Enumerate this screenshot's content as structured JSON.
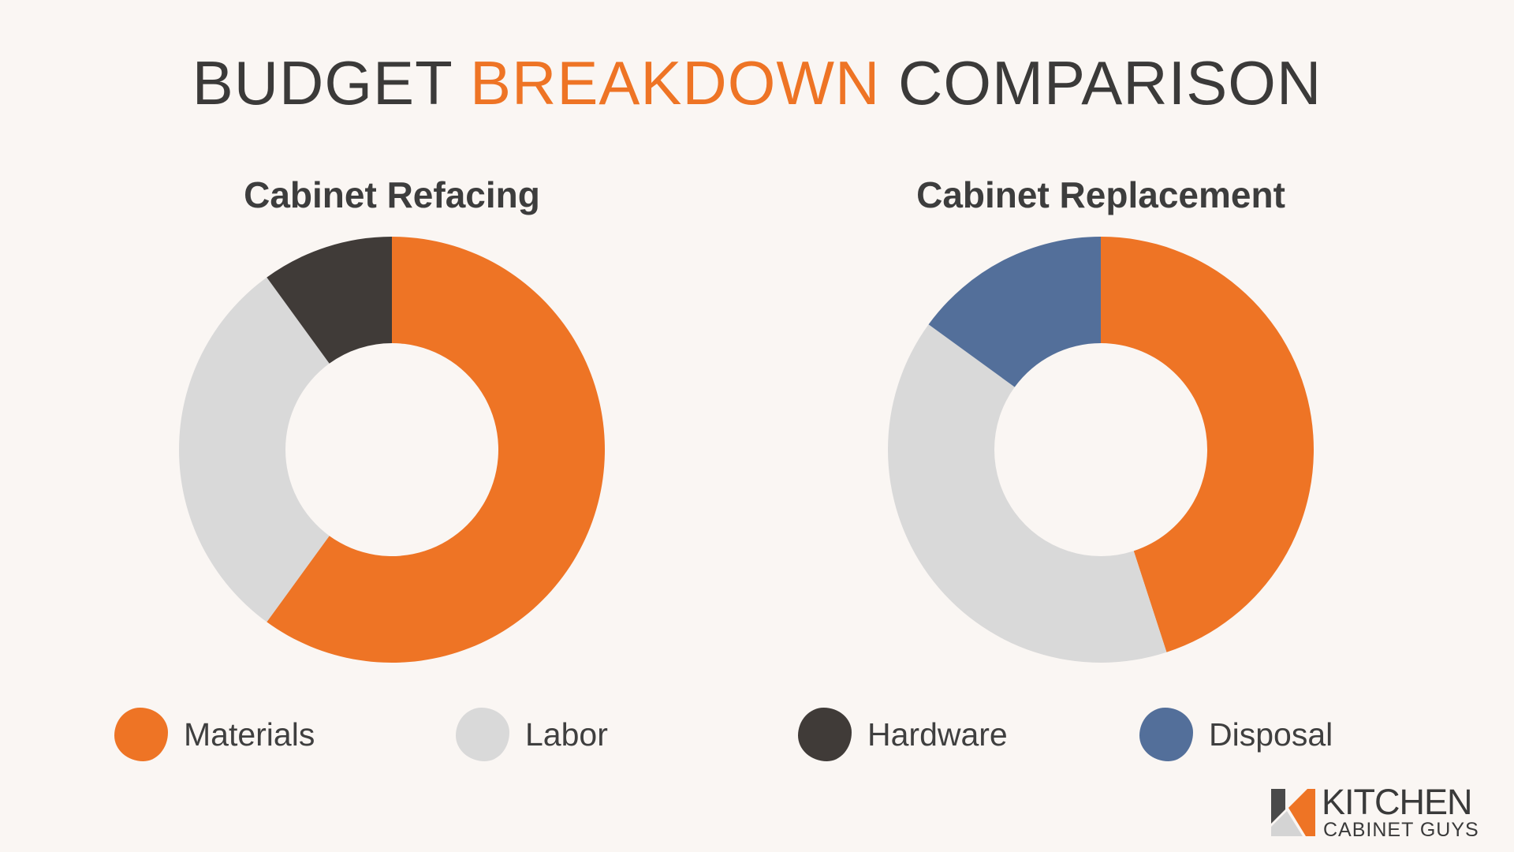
{
  "header": {
    "title_part1": "BUDGET",
    "title_part2": "BREAKDOWN",
    "title_part3": "COMPARISON"
  },
  "colors": {
    "background": "#faf6f3",
    "accent": "#ee7425",
    "materials": "#ee7425",
    "labor": "#d9d9d9",
    "hardware": "#403b38",
    "disposal": "#536f9a"
  },
  "legend": [
    {
      "label": "Materials",
      "color": "#ee7425"
    },
    {
      "label": "Labor",
      "color": "#d9d9d9"
    },
    {
      "label": "Hardware",
      "color": "#403b38"
    },
    {
      "label": "Disposal",
      "color": "#536f9a"
    }
  ],
  "chart_data": [
    {
      "type": "pie",
      "title": "Cabinet Refacing",
      "categories": [
        "Materials",
        "Labor",
        "Hardware"
      ],
      "values": [
        60,
        30,
        10
      ]
    },
    {
      "type": "pie",
      "title": "Cabinet Replacement",
      "categories": [
        "Materials",
        "Labor",
        "Disposal"
      ],
      "values": [
        45,
        40,
        15
      ]
    }
  ],
  "logo": {
    "line1": "KITCHEN",
    "line2": "CABINET GUYS"
  }
}
